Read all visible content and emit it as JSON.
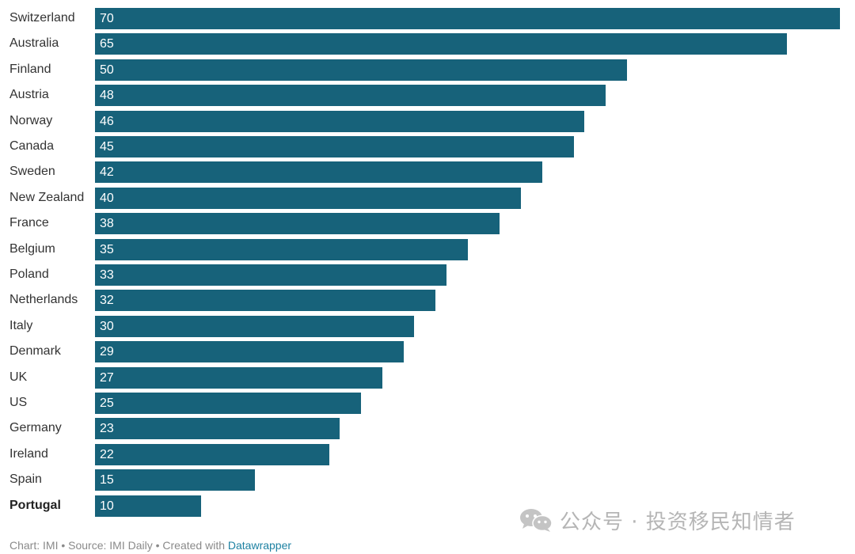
{
  "chart_data": {
    "type": "bar",
    "orientation": "horizontal",
    "categories": [
      "Switzerland",
      "Australia",
      "Finland",
      "Austria",
      "Norway",
      "Canada",
      "Sweden",
      "New Zealand",
      "France",
      "Belgium",
      "Poland",
      "Netherlands",
      "Italy",
      "Denmark",
      "UK",
      "US",
      "Germany",
      "Ireland",
      "Spain",
      "Portugal"
    ],
    "values": [
      70,
      65,
      50,
      48,
      46,
      45,
      42,
      40,
      38,
      35,
      33,
      32,
      30,
      29,
      27,
      25,
      23,
      22,
      15,
      10
    ],
    "value_labels": [
      "70",
      "65",
      "50",
      "48",
      "46",
      "45",
      "42",
      "40",
      "38",
      "35",
      "33",
      "32",
      "30",
      "29",
      "27",
      "25",
      "23",
      "22",
      "15",
      "10"
    ],
    "highlight_category": "Portugal",
    "bar_color": "#17627a",
    "xlim": [
      0,
      70
    ],
    "grid": false,
    "legend": "none"
  },
  "footer": {
    "prefix": "Chart: IMI • Source: IMI Daily • Created with ",
    "link": "Datawrapper"
  },
  "watermark": {
    "icon": "wechat-icon",
    "text": "公众号 · 投资移民知情者"
  },
  "colors": {
    "bar": "#17627a",
    "footer_text": "#8a8a8a",
    "footer_link": "#1d81a2",
    "watermark": "#b5b5b5"
  }
}
